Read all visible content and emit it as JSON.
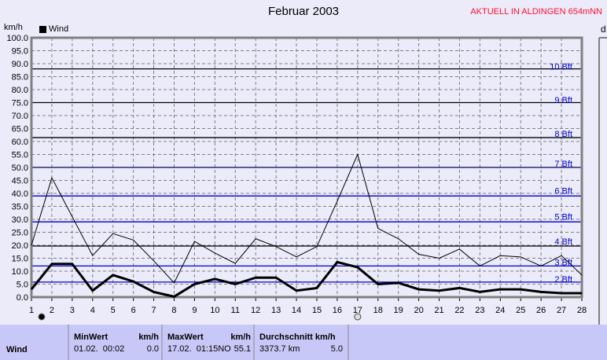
{
  "title": "Februar 2003",
  "subtitle": "AKTUELL IN ALDINGEN 654mNN",
  "right_panel_label": "d",
  "colors": {
    "background": "#ebebfa",
    "table": "#c8c8f8",
    "beaufort_line": "#0000cc",
    "subtitle": "#ff1030"
  },
  "icons": {
    "full_moon_day": "new-moon-icon",
    "empty_moon_day": "full-moon-icon",
    "full_moon_x": 2,
    "empty_moon_x": 17
  },
  "chart_data": {
    "type": "line",
    "title": "Februar 2003",
    "ylabel": "km/h",
    "ylim": [
      0,
      100
    ],
    "xlim": [
      1,
      28
    ],
    "grid": true,
    "legend_placement": "top-left",
    "legend": [
      "Wind"
    ],
    "x": [
      1,
      2,
      3,
      4,
      5,
      6,
      7,
      8,
      9,
      10,
      11,
      12,
      13,
      14,
      15,
      16,
      17,
      18,
      19,
      20,
      21,
      22,
      23,
      24,
      25,
      26,
      27,
      28
    ],
    "yticks": [
      "0.0",
      "5.0",
      "10.0",
      "15.0",
      "20.0",
      "25.0",
      "30.0",
      "35.0",
      "40.0",
      "45.0",
      "50.0",
      "55.0",
      "60.0",
      "65.0",
      "70.0",
      "75.0",
      "80.0",
      "85.0",
      "90.0",
      "95.0",
      "100.0"
    ],
    "series": [
      {
        "values": [
          20,
          46,
          31,
          16,
          24.5,
          22,
          14,
          5.5,
          21.5,
          17,
          13,
          22.5,
          19.5,
          15.5,
          19.5,
          37,
          55,
          26.5,
          22.5,
          16.5,
          15,
          18.5,
          12,
          16,
          15.5,
          12,
          16,
          8.5
        ]
      },
      {
        "name": "Wind",
        "values": [
          3,
          12.8,
          12.8,
          2.5,
          8.5,
          6,
          2,
          0.2,
          5,
          7,
          5,
          7.5,
          7.5,
          2.5,
          3.5,
          13.5,
          11.5,
          5,
          5.5,
          3,
          2.5,
          3.5,
          2,
          3,
          3,
          2,
          1.5,
          1.5
        ]
      }
    ],
    "beaufort_lines": [
      {
        "value": 88,
        "color": "#000000"
      },
      {
        "value": 75,
        "color": "#000000"
      },
      {
        "value": 61.5,
        "color": "#000000"
      },
      {
        "value": 50,
        "color": "#000060"
      },
      {
        "value": 39,
        "color": "#0000cc"
      },
      {
        "value": 29,
        "color": "#0000cc"
      },
      {
        "value": 19.7,
        "color": "#000000"
      },
      {
        "value": 12,
        "color": "#0000cc"
      },
      {
        "value": 5.8,
        "color": "#0000cc"
      }
    ],
    "beaufort_labels": [
      {
        "text": "10 Bft",
        "value": 89
      },
      {
        "text": "9 Bft",
        "value": 76
      },
      {
        "text": "8 Bft",
        "value": 63
      },
      {
        "text": "7 Bft",
        "value": 51.5
      },
      {
        "text": "6 Bft",
        "value": 41
      },
      {
        "text": "5 Bft",
        "value": 31
      },
      {
        "text": "4 Bft",
        "value": 21.5
      },
      {
        "text": "3 Bft",
        "value": 13.5
      },
      {
        "text": "2 Bft",
        "value": 7
      }
    ]
  },
  "table": {
    "row_label": "Wind",
    "min": {
      "header": "MinWert",
      "unit": "km/h",
      "time": "01.02.  00:02",
      "value": "0.0"
    },
    "max": {
      "header": "MaxWert",
      "unit": "km/h",
      "time": "17.02.  01:15NO",
      "value": "55.1"
    },
    "avg": {
      "header": "Durchschnitt km/h",
      "distance": "3373.7 km",
      "value": "5.0"
    }
  }
}
